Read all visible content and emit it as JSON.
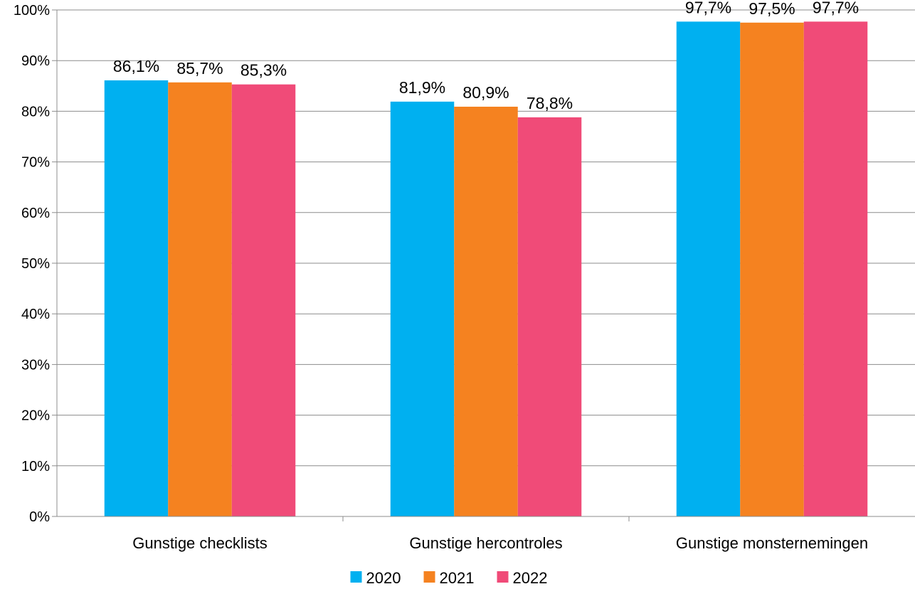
{
  "chart_data": {
    "type": "bar",
    "categories": [
      "Gunstige checklists",
      "Gunstige hercontroles",
      "Gunstige monsternemingen"
    ],
    "series": [
      {
        "name": "2020",
        "color": "#00B0F0",
        "values": [
          86.1,
          81.9,
          97.7
        ],
        "labels": [
          "86,1%",
          "81,9%",
          "97,7%"
        ]
      },
      {
        "name": "2021",
        "color": "#F58220",
        "values": [
          85.7,
          80.9,
          97.5
        ],
        "labels": [
          "85,7%",
          "80,9%",
          "97,5%"
        ]
      },
      {
        "name": "2022",
        "color": "#F04B78",
        "values": [
          85.3,
          78.8,
          97.7
        ],
        "labels": [
          "85,3%",
          "78,8%",
          "97,7%"
        ]
      }
    ],
    "ylim": [
      0,
      100
    ],
    "yticks": [
      0,
      10,
      20,
      30,
      40,
      50,
      60,
      70,
      80,
      90,
      100
    ],
    "ytick_labels": [
      "0%",
      "10%",
      "20%",
      "30%",
      "40%",
      "50%",
      "60%",
      "70%",
      "80%",
      "90%",
      "100%"
    ],
    "grid": true,
    "legend": "bottom-center",
    "title": "",
    "xlabel": "",
    "ylabel": ""
  }
}
